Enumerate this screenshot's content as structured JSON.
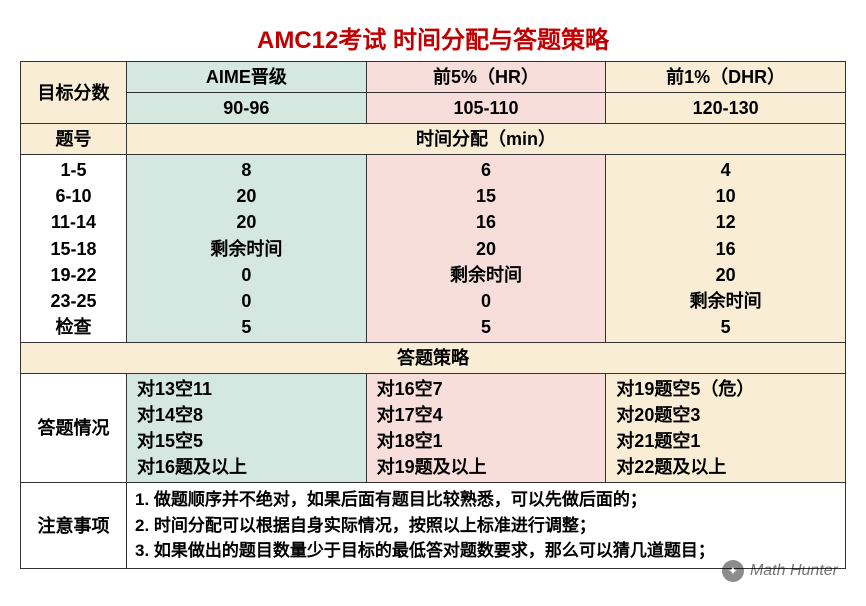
{
  "title": "AMC12考试 时间分配与答题策略",
  "colors": {
    "title_color": "#c00000",
    "border_color": "#333333",
    "bg_blue": "#d4e7e0",
    "bg_pink": "#f7dedb",
    "bg_yellow": "#f9eed5",
    "bg_white": "#ffffff"
  },
  "header": {
    "target_label": "目标分数",
    "tiers": [
      {
        "name": "AIME晋级",
        "range": "90-96",
        "bg": "#d4e7e0"
      },
      {
        "name": "前5%（HR）",
        "range": "105-110",
        "bg": "#f7dedb"
      },
      {
        "name": "前1%（DHR）",
        "range": "120-130",
        "bg": "#f9eed5"
      }
    ]
  },
  "time_section": {
    "question_label": "题号",
    "section_title": "时间分配（min）",
    "rows": [
      {
        "range": "1-5",
        "t": [
          "8",
          "6",
          "4"
        ]
      },
      {
        "range": "6-10",
        "t": [
          "20",
          "15",
          "10"
        ]
      },
      {
        "range": "11-14",
        "t": [
          "20",
          "16",
          "12"
        ]
      },
      {
        "range": "15-18",
        "t": [
          "剩余时间",
          "20",
          "16"
        ]
      },
      {
        "range": "19-22",
        "t": [
          "0",
          "剩余时间",
          "20"
        ]
      },
      {
        "range": "23-25",
        "t": [
          "0",
          "0",
          "剩余时间"
        ]
      },
      {
        "range": "检查",
        "t": [
          "5",
          "5",
          "5"
        ]
      }
    ]
  },
  "strategy_section": {
    "title": "答题策略",
    "label": "答题情况",
    "cols": [
      [
        "对13空11",
        "对14空8",
        "对15空5",
        "对16题及以上"
      ],
      [
        "对16空7",
        "对17空4",
        "对18空1",
        "对19题及以上"
      ],
      [
        "对19题空5（危）",
        "对20题空3",
        "对21题空1",
        "对22题及以上"
      ]
    ]
  },
  "notes": {
    "label": "注意事项",
    "lines": [
      "1. 做题顺序并不绝对，如果后面有题目比较熟悉，可以先做后面的；",
      "2. 时间分配可以根据自身实际情况，按照以上标准进行调整；",
      "3. 如果做出的题目数量少于目标的最低答对题数要求，那么可以猜几道题目；"
    ]
  },
  "watermark": "Math Hunter"
}
